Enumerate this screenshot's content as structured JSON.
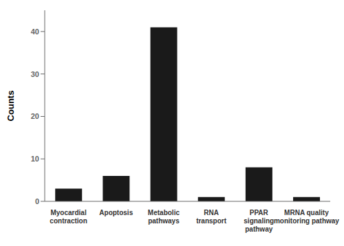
{
  "chart_data": {
    "type": "bar",
    "categories": [
      "Myocardial\ncontraction",
      "Apoptosis",
      "Metabolic\npathways",
      "RNA\ntransport",
      "PPAR\nsignaling\npathway",
      "MRNA quality\nmonitoring pathway"
    ],
    "values": [
      3,
      6,
      41,
      1,
      8,
      1
    ],
    "color": "#1a1a1a",
    "ylabel": "Counts",
    "ylim": [
      0,
      45
    ],
    "yticks": [
      0,
      10,
      20,
      30,
      40
    ],
    "grid": false
  }
}
